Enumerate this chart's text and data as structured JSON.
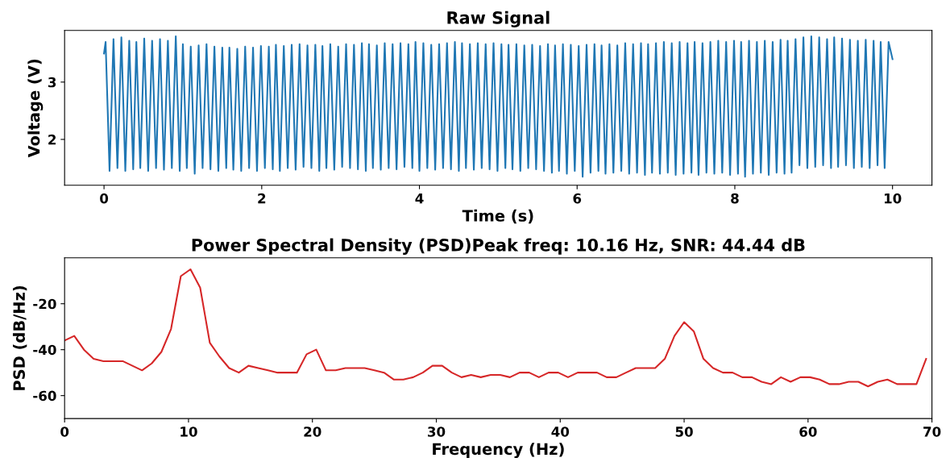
{
  "chart_data": [
    {
      "type": "line",
      "title": "Raw Signal",
      "xlabel": "Time (s)",
      "ylabel": "Voltage (V)",
      "xlim": [
        -0.5,
        10.5
      ],
      "ylim": [
        1.2,
        3.9
      ],
      "xticks": [
        0,
        2,
        4,
        6,
        8,
        10
      ],
      "yticks": [
        2,
        3
      ],
      "marker": "none",
      "line_style": "solid",
      "series": [
        {
          "color": "#1f77b4",
          "x": [
            0,
            0.02,
            0.07,
            0.12,
            0.17,
            0.22,
            0.27,
            0.32,
            0.37,
            0.41,
            0.46,
            0.51,
            0.56,
            0.61,
            0.66,
            0.71,
            0.76,
            0.81,
            0.86,
            0.91,
            0.96,
            1.0,
            1.05,
            1.1,
            1.15,
            1.2,
            1.25,
            1.3,
            1.35,
            1.4,
            1.45,
            1.5,
            1.55,
            1.59,
            1.64,
            1.69,
            1.74,
            1.79,
            1.84,
            1.89,
            1.94,
            1.99,
            2.04,
            2.09,
            2.14,
            2.18,
            2.23,
            2.28,
            2.33,
            2.38,
            2.43,
            2.48,
            2.53,
            2.58,
            2.63,
            2.68,
            2.73,
            2.77,
            2.82,
            2.87,
            2.92,
            2.97,
            3.02,
            3.07,
            3.12,
            3.17,
            3.22,
            3.27,
            3.32,
            3.36,
            3.41,
            3.46,
            3.51,
            3.56,
            3.61,
            3.66,
            3.71,
            3.76,
            3.81,
            3.86,
            3.91,
            3.95,
            4.0,
            4.05,
            4.1,
            4.15,
            4.2,
            4.25,
            4.3,
            4.35,
            4.4,
            4.45,
            4.5,
            4.54,
            4.59,
            4.64,
            4.69,
            4.74,
            4.79,
            4.84,
            4.89,
            4.94,
            4.99,
            5.04,
            5.09,
            5.13,
            5.18,
            5.23,
            5.28,
            5.33,
            5.38,
            5.43,
            5.48,
            5.53,
            5.58,
            5.63,
            5.68,
            5.72,
            5.77,
            5.82,
            5.87,
            5.92,
            5.97,
            6.02,
            6.07,
            6.12,
            6.17,
            6.22,
            6.27,
            6.31,
            6.36,
            6.41,
            6.46,
            6.51,
            6.56,
            6.61,
            6.66,
            6.71,
            6.76,
            6.81,
            6.86,
            6.9,
            6.95,
            7.0,
            7.05,
            7.1,
            7.15,
            7.2,
            7.25,
            7.3,
            7.35,
            7.4,
            7.45,
            7.49,
            7.54,
            7.59,
            7.64,
            7.69,
            7.74,
            7.79,
            7.84,
            7.89,
            7.94,
            7.99,
            8.04,
            8.08,
            8.13,
            8.18,
            8.23,
            8.28,
            8.33,
            8.38,
            8.43,
            8.48,
            8.53,
            8.58,
            8.63,
            8.67,
            8.72,
            8.77,
            8.82,
            8.87,
            8.92,
            8.97,
            9.02,
            9.07,
            9.12,
            9.17,
            9.22,
            9.26,
            9.31,
            9.36,
            9.41,
            9.46,
            9.51,
            9.56,
            9.61,
            9.66,
            9.71,
            9.76,
            9.81,
            9.85,
            9.9,
            9.95,
            10.0
          ],
          "values": [
            3.5,
            3.7,
            1.45,
            3.75,
            1.5,
            3.78,
            1.45,
            3.72,
            1.48,
            3.7,
            1.5,
            3.76,
            1.45,
            3.72,
            1.5,
            3.75,
            1.47,
            3.72,
            1.5,
            3.8,
            1.45,
            3.66,
            1.5,
            3.62,
            1.4,
            3.64,
            1.5,
            3.66,
            1.48,
            3.62,
            1.45,
            3.6,
            1.5,
            3.6,
            1.47,
            3.58,
            1.45,
            3.62,
            1.5,
            3.6,
            1.45,
            3.63,
            1.5,
            3.62,
            1.48,
            3.65,
            1.45,
            3.63,
            1.5,
            3.65,
            1.47,
            3.66,
            1.52,
            3.64,
            1.5,
            3.65,
            1.45,
            3.63,
            1.5,
            3.66,
            1.47,
            3.62,
            1.52,
            3.66,
            1.5,
            3.65,
            1.48,
            3.68,
            1.45,
            3.66,
            1.5,
            3.64,
            1.47,
            3.68,
            1.5,
            3.66,
            1.48,
            3.68,
            1.52,
            3.66,
            1.5,
            3.7,
            1.45,
            3.68,
            1.5,
            3.65,
            1.47,
            3.66,
            1.5,
            3.68,
            1.48,
            3.7,
            1.45,
            3.68,
            1.5,
            3.66,
            1.47,
            3.68,
            1.5,
            3.66,
            1.48,
            3.68,
            1.45,
            3.66,
            1.5,
            3.65,
            1.48,
            3.66,
            1.45,
            3.64,
            1.5,
            3.65,
            1.48,
            3.63,
            1.45,
            3.66,
            1.42,
            3.64,
            1.45,
            3.66,
            1.4,
            3.65,
            1.45,
            3.63,
            1.35,
            3.65,
            1.42,
            3.66,
            1.45,
            3.64,
            1.4,
            3.66,
            1.42,
            3.64,
            1.45,
            3.68,
            1.4,
            3.66,
            1.42,
            3.68,
            1.38,
            3.66,
            1.42,
            3.68,
            1.4,
            3.7,
            1.42,
            3.68,
            1.38,
            3.7,
            1.4,
            3.68,
            1.42,
            3.7,
            1.38,
            3.68,
            1.42,
            3.7,
            1.4,
            3.72,
            1.42,
            3.7,
            1.38,
            3.72,
            1.4,
            3.7,
            1.35,
            3.72,
            1.4,
            3.7,
            1.42,
            3.72,
            1.38,
            3.7,
            1.42,
            3.74,
            1.4,
            3.72,
            1.42,
            3.75,
            1.55,
            3.78,
            1.5,
            3.8,
            1.52,
            3.78,
            1.55,
            3.75,
            1.5,
            3.78,
            1.52,
            3.76,
            1.55,
            3.74,
            1.5,
            3.72,
            1.52,
            3.74,
            1.5,
            3.72,
            1.55,
            3.7,
            1.5,
            3.7,
            3.4
          ]
        }
      ]
    },
    {
      "type": "line",
      "title": "Power Spectral Density (PSD)Peak freq: 10.16 Hz, SNR: 44.44 dB",
      "xlabel": "Frequency (Hz)",
      "ylabel": "PSD (dB/Hz)",
      "xlim": [
        0,
        70
      ],
      "ylim": [
        -70,
        0
      ],
      "xticks": [
        0,
        10,
        20,
        30,
        40,
        50,
        60,
        70
      ],
      "yticks": [
        -60,
        -40,
        -20
      ],
      "marker": "none",
      "line_style": "solid",
      "series": [
        {
          "color": "#d62728",
          "x": [
            0,
            0.78,
            1.56,
            2.34,
            3.13,
            3.91,
            4.69,
            5.47,
            6.25,
            7.03,
            7.81,
            8.59,
            9.38,
            10.16,
            10.94,
            11.72,
            12.5,
            13.28,
            14.06,
            14.84,
            15.63,
            16.41,
            17.19,
            17.97,
            18.75,
            19.53,
            20.31,
            21.09,
            21.88,
            22.66,
            23.44,
            24.22,
            25.0,
            25.78,
            26.56,
            27.34,
            28.13,
            28.91,
            29.69,
            30.47,
            31.25,
            32.03,
            32.81,
            33.59,
            34.38,
            35.16,
            35.94,
            36.72,
            37.5,
            38.28,
            39.06,
            39.84,
            40.63,
            41.41,
            42.19,
            42.97,
            43.75,
            44.53,
            45.31,
            46.09,
            46.88,
            47.66,
            48.44,
            49.22,
            50.0,
            50.78,
            51.56,
            52.34,
            53.13,
            53.91,
            54.69,
            55.47,
            56.25,
            57.03,
            57.81,
            58.59,
            59.38,
            60.16,
            60.94,
            61.72,
            62.5,
            63.28,
            64.06,
            64.84,
            65.63,
            66.41,
            67.19,
            67.97,
            68.75,
            69.53
          ],
          "values": [
            -36,
            -34,
            -40,
            -44,
            -45,
            -45,
            -45,
            -47,
            -49,
            -46,
            -41,
            -31,
            -8,
            -5,
            -13,
            -37,
            -43,
            -48,
            -50,
            -47,
            -48,
            -49,
            -50,
            -50,
            -50,
            -42,
            -40,
            -49,
            -49,
            -48,
            -48,
            -48,
            -49,
            -50,
            -53,
            -53,
            -52,
            -50,
            -47,
            -47,
            -50,
            -52,
            -51,
            -52,
            -51,
            -51,
            -52,
            -50,
            -50,
            -52,
            -50,
            -50,
            -52,
            -50,
            -50,
            -50,
            -52,
            -52,
            -50,
            -48,
            -48,
            -48,
            -44,
            -34,
            -28,
            -32,
            -44,
            -48,
            -50,
            -50,
            -52,
            -52,
            -54,
            -55,
            -52,
            -54,
            -52,
            -52,
            -53,
            -55,
            -55,
            -54,
            -54,
            -56,
            -54,
            -53,
            -55,
            -55,
            -55,
            -44
          ]
        }
      ]
    }
  ]
}
